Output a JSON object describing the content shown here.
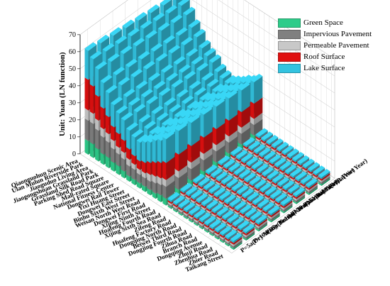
{
  "chart_data": {
    "type": "bar3d",
    "ylabel": "Unit: Yuan (LN function)",
    "zlim": [
      0,
      70
    ],
    "z_ticks": [
      0,
      10,
      20,
      30,
      40,
      50,
      60,
      70
    ],
    "grid": true,
    "legend_position": "top-right",
    "locations": [
      "Qiaonguohun Scenic Area",
      "Ulan Mulun Riverside Park",
      "Jiaoguduo Living Area",
      "Jiaogongshuan Grassland Park",
      "Grassland Silk Road Park",
      "Parking Shed Road Square",
      "Mall-rated Square",
      "National Fitness Center",
      "Dongwei Rail Tower",
      "Yixi Huang Street",
      "Dongwei East Street",
      "Binhu Sixth West Street",
      "Weisan North West Road",
      "Dongwei First Road",
      "Xijing Ninth Street",
      "Huafeng Fourth Road",
      "Xijing Sixth Sea Road",
      "Zifeng Road",
      "Huafeng Factory Road",
      "Dongqing North Road",
      "Beiwei Third Road",
      "Dongjing Fourth Road",
      "Zihua Road",
      "Branch Road",
      "Dongqing Avenue",
      "Zhuji Road",
      "Zhenhua Road",
      "Zhier Road",
      "Taikang Street"
    ],
    "scenarios": [
      "P=5a(Dry Year)",
      "P=10a(Dry Year)",
      "P=5a(Normal Year)",
      "P=10a(Normal Year)",
      "P=20a(Normal Year)",
      "P=5a(Wet Year)",
      "P=10a(Wet Year)",
      "P=20a(Wet Year)"
    ],
    "series": [
      {
        "name": "Green Space",
        "color": "#2ecc8a"
      },
      {
        "name": "Impervious Pavement",
        "color": "#808080"
      },
      {
        "name": "Permeable Pavement",
        "color": "#c8c8c8"
      },
      {
        "name": "Roof Surface",
        "color": "#e01010"
      },
      {
        "name": "Lake Surface",
        "color": "#33c3e0"
      }
    ],
    "front_row_values": [
      [
        8,
        12,
        6,
        18,
        17
      ],
      [
        8,
        12,
        6,
        16,
        16
      ],
      [
        7,
        11,
        6,
        14,
        16
      ],
      [
        6,
        10,
        5,
        12,
        15
      ],
      [
        6,
        9,
        5,
        10,
        14
      ],
      [
        5,
        8,
        5,
        8,
        13
      ],
      [
        5,
        7,
        4,
        8,
        12
      ],
      [
        4,
        7,
        4,
        7,
        12
      ],
      [
        3,
        6,
        4,
        6,
        11
      ],
      [
        3,
        6,
        3,
        5,
        11
      ],
      [
        3,
        5,
        3,
        5,
        11
      ],
      [
        3,
        5,
        3,
        6,
        12
      ],
      [
        3,
        5,
        4,
        7,
        12
      ],
      [
        3,
        6,
        4,
        8,
        13
      ],
      [
        4,
        6,
        4,
        9,
        13
      ],
      [
        4,
        7,
        4,
        10,
        14
      ]
    ],
    "low_value_total": 5
  }
}
